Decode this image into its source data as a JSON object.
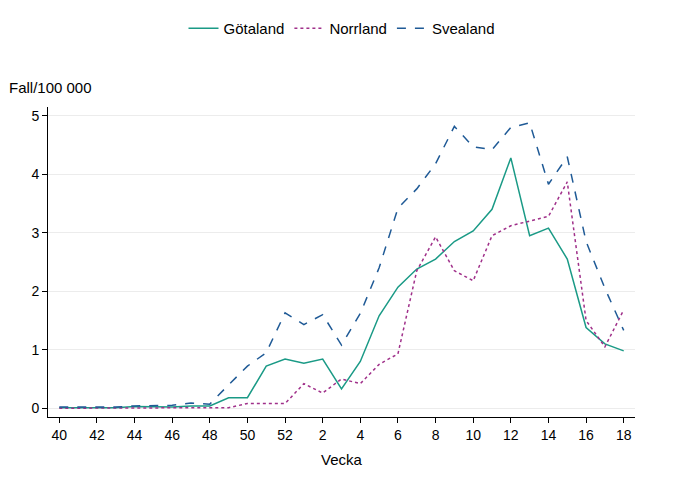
{
  "chart_data": {
    "type": "line",
    "x_label": "Vecka",
    "y_label": "Fall/100 000",
    "categories": [
      "40",
      null,
      "42",
      null,
      "44",
      null,
      "46",
      null,
      "48",
      null,
      "50",
      null,
      "52",
      null,
      "2",
      null,
      "4",
      null,
      "6",
      null,
      "8",
      null,
      "10",
      null,
      "12",
      null,
      "14",
      null,
      "16",
      null,
      "18"
    ],
    "series": [
      {
        "name": "Götaland",
        "color": "#1a9a86",
        "line_style": "solid",
        "values": [
          0.01,
          0.01,
          0.01,
          0.01,
          0.03,
          0.03,
          0.02,
          0.04,
          0.04,
          0.18,
          0.18,
          0.72,
          0.84,
          0.77,
          0.84,
          0.33,
          0.8,
          1.58,
          2.07,
          2.38,
          2.55,
          2.85,
          3.03,
          3.4,
          4.28,
          2.95,
          3.08,
          2.55,
          1.38,
          1.1,
          0.98
        ]
      },
      {
        "name": "Norrland",
        "color": "#a0308a",
        "line_style": "dot",
        "values": [
          0,
          0,
          0,
          0,
          0,
          0,
          0,
          0.01,
          0.01,
          0.01,
          0.08,
          0.08,
          0.08,
          0.42,
          0.26,
          0.5,
          0.42,
          0.75,
          0.93,
          2.35,
          2.93,
          2.35,
          2.18,
          2.95,
          3.12,
          3.2,
          3.28,
          3.87,
          1.5,
          1.05,
          1.68
        ]
      },
      {
        "name": "Svealand",
        "color": "#1f5a96",
        "line_style": "dash",
        "values": [
          0.02,
          0.02,
          0.02,
          0.02,
          0.04,
          0.04,
          0.05,
          0.09,
          0.07,
          0.4,
          0.72,
          0.95,
          1.63,
          1.43,
          1.6,
          1.08,
          1.62,
          2.4,
          3.42,
          3.75,
          4.18,
          4.82,
          4.47,
          4.42,
          4.8,
          4.88,
          3.83,
          4.3,
          2.85,
          2.05,
          1.33
        ]
      }
    ],
    "ylim": [
      -0.15,
      5.15
    ],
    "yticks": [
      0,
      1,
      2,
      3,
      4,
      5
    ],
    "grid": true,
    "legend": "top"
  }
}
